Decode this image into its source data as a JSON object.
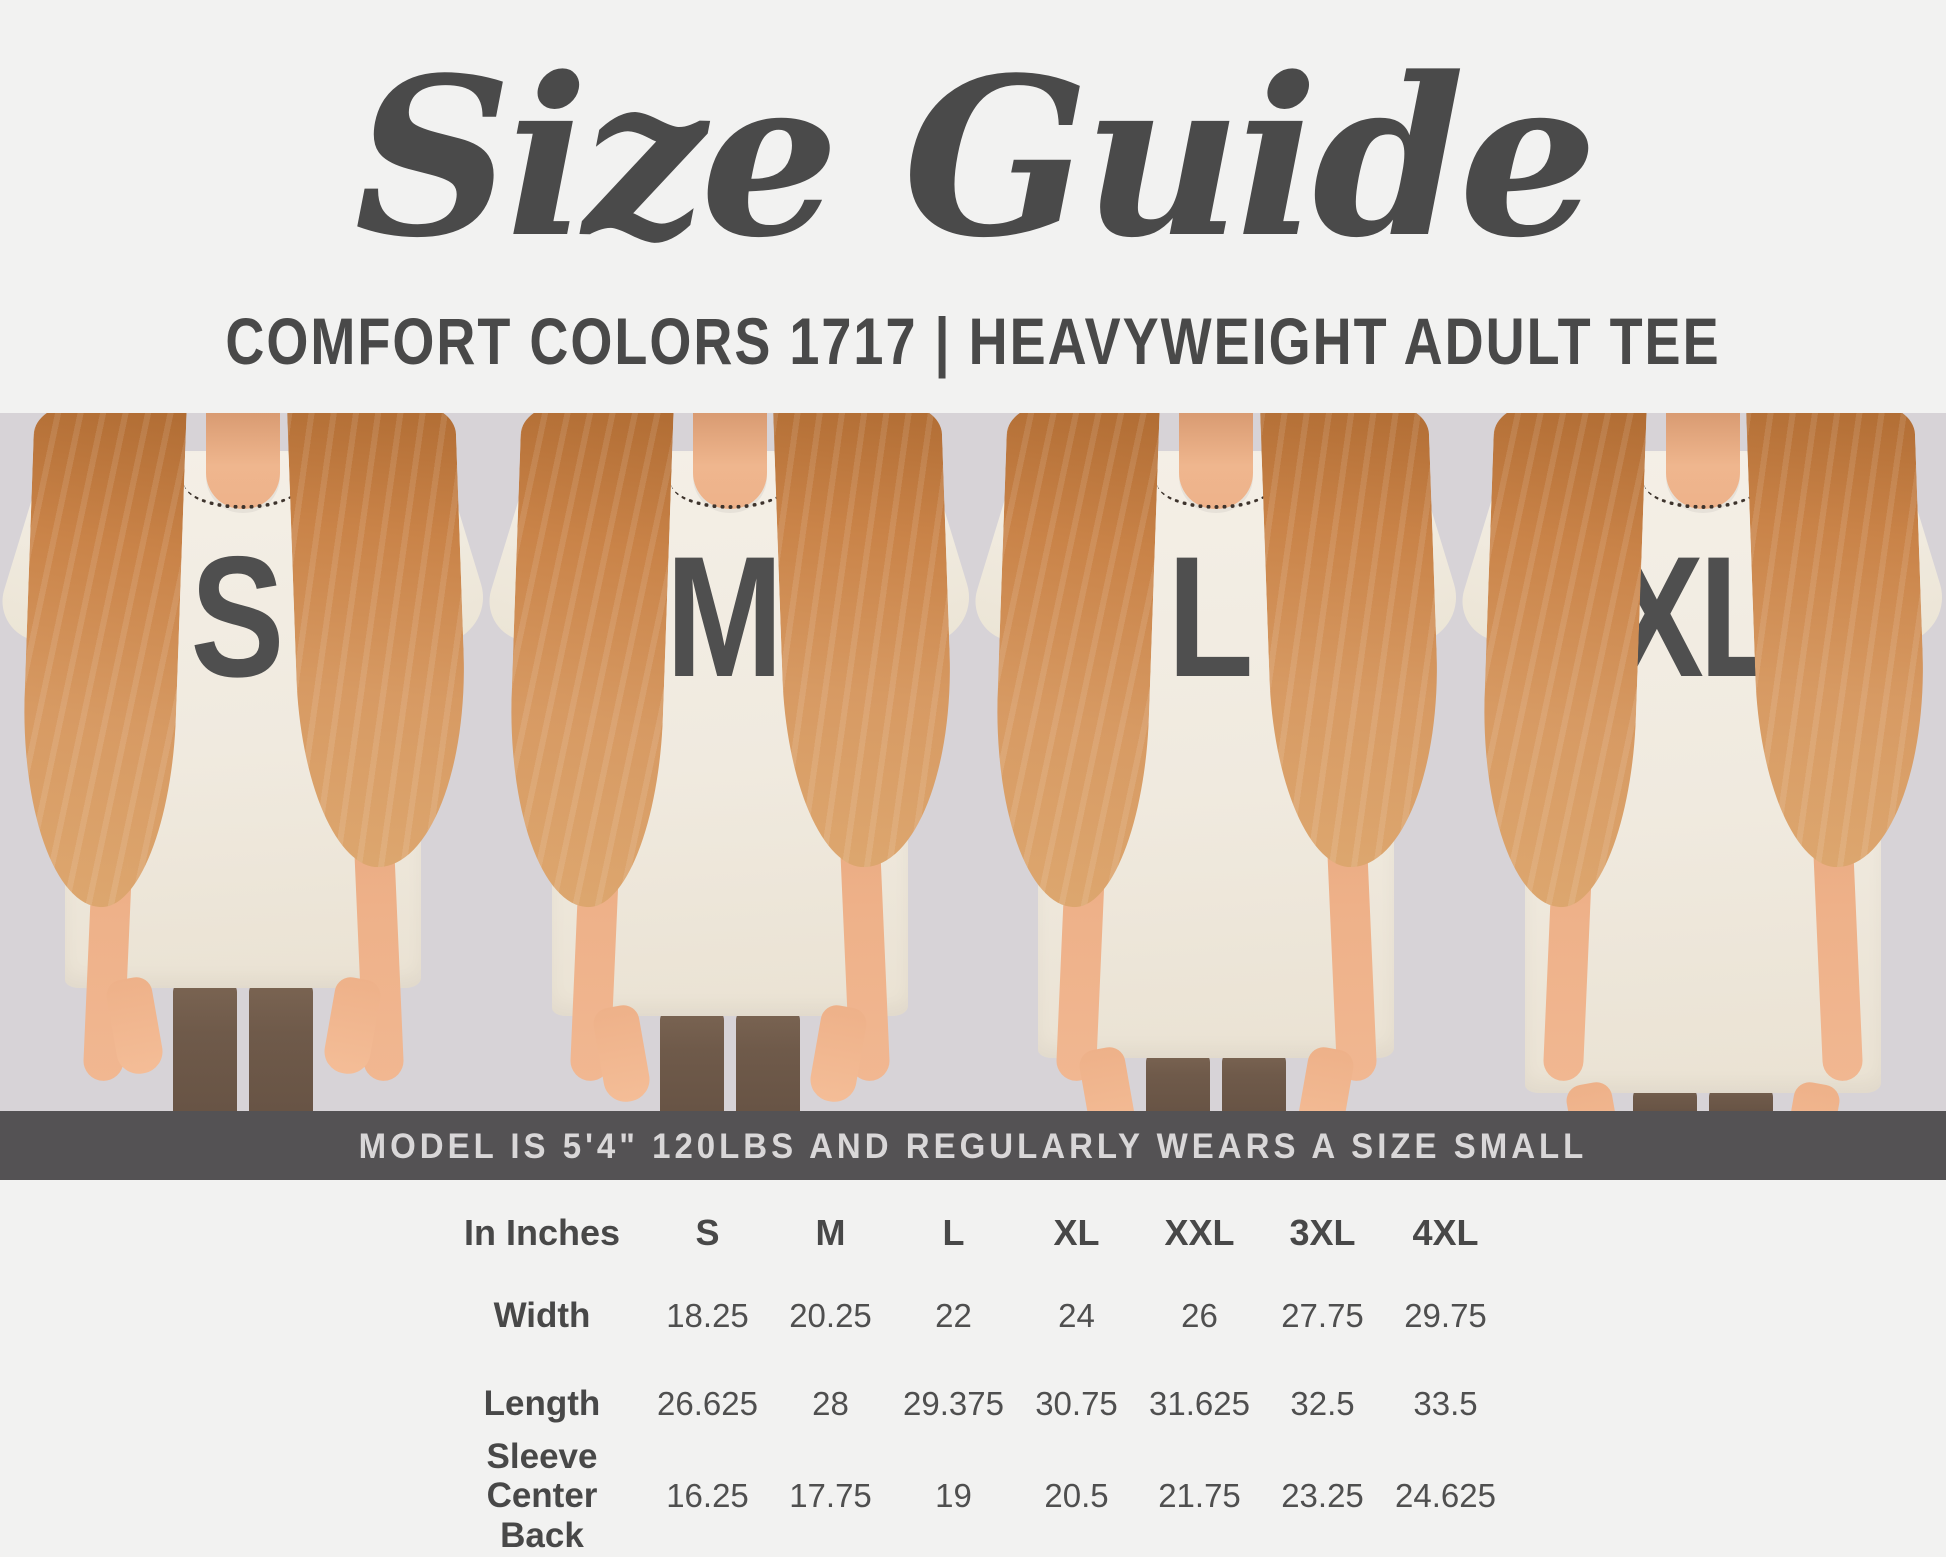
{
  "header": {
    "title": "Size Guide",
    "subtitle": "COMFORT COLORS 1717 | HEAVYWEIGHT ADULT TEE"
  },
  "panels": [
    {
      "size_label": "S"
    },
    {
      "size_label": "M"
    },
    {
      "size_label": "L"
    },
    {
      "size_label": "XL"
    }
  ],
  "model_banner": {
    "text": "MODEL IS 5'4\" 120LBS AND REGULARLY WEARS A SIZE SMALL"
  },
  "size_table": {
    "unit_label": "In Inches",
    "columns": [
      "S",
      "M",
      "L",
      "XL",
      "XXL",
      "3XL",
      "4XL"
    ],
    "rows": [
      {
        "label": "Width",
        "values": [
          "18.25",
          "20.25",
          "22",
          "24",
          "26",
          "27.75",
          "29.75"
        ]
      },
      {
        "label": "Length",
        "values": [
          "26.625",
          "28",
          "29.375",
          "30.75",
          "31.625",
          "32.5",
          "33.5"
        ]
      },
      {
        "label": "Sleeve Center Back",
        "values": [
          "16.25",
          "17.75",
          "19",
          "20.5",
          "21.75",
          "23.25",
          "24.625"
        ]
      }
    ]
  },
  "colors": {
    "page_background": "#f2f2f1",
    "photo_background": "#d7d3d7",
    "banner_background": "#545254",
    "banner_text": "#d9d7d8",
    "heading_text": "#4a4a4a",
    "size_letter": "#4f4f4f",
    "shirt": "#f1ece2",
    "leggings": "#6f5a4a",
    "hair": "#cd8a50",
    "skin": "#edae87"
  }
}
